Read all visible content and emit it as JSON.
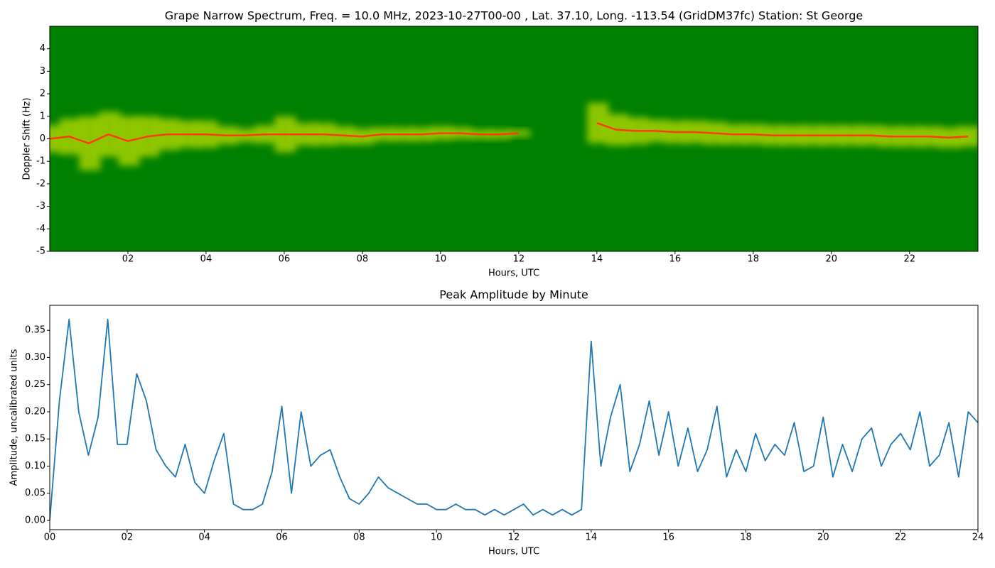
{
  "chart_data": [
    {
      "type": "spectrogram",
      "title": "Grape Narrow Spectrum, Freq. = 10.0 MHz, 2023-10-27T00-00 , Lat.  37.10, Long. -113.54 (GridDM37fc) Station: St George",
      "x_label": "Hours, UTC",
      "y_label": "Doppler Shift (Hz)",
      "background": "#008000",
      "colors": [
        "#ffff00",
        "#ff3c00"
      ],
      "x": [
        0,
        0.5,
        1,
        1.5,
        2,
        2.5,
        3,
        3.5,
        4,
        4.5,
        5,
        5.5,
        6,
        6.5,
        7,
        7.5,
        8,
        8.5,
        9,
        9.5,
        10,
        10.5,
        11,
        11.5,
        12,
        12.5,
        13,
        13.5,
        14,
        14.5,
        15,
        15.5,
        16,
        16.5,
        17,
        17.5,
        18,
        18.5,
        19,
        19.5,
        20,
        20.5,
        21,
        21.5,
        22,
        22.5,
        23,
        23.5
      ],
      "peak": [
        0,
        0.1,
        -0.2,
        0.2,
        -0.1,
        0.1,
        0.2,
        0.2,
        0.2,
        0.15,
        0.15,
        0.2,
        0.2,
        0.2,
        0.2,
        0.15,
        0.1,
        0.2,
        0.2,
        0.2,
        0.25,
        0.25,
        0.2,
        0.2,
        0.25,
        null,
        null,
        null,
        0.7,
        0.4,
        0.35,
        0.35,
        0.3,
        0.3,
        0.25,
        0.2,
        0.2,
        0.15,
        0.15,
        0.15,
        0.15,
        0.15,
        0.15,
        0.1,
        0.1,
        0.1,
        0.05,
        0.1
      ],
      "spread": [
        0.6,
        0.8,
        1.2,
        1.0,
        1.1,
        0.9,
        0.7,
        0.6,
        0.6,
        0.4,
        0.3,
        0.4,
        0.8,
        0.5,
        0.5,
        0.4,
        0.35,
        0.3,
        0.3,
        0.3,
        0.3,
        0.25,
        0.2,
        0.2,
        0.15,
        null,
        null,
        null,
        0.9,
        0.7,
        0.6,
        0.5,
        0.5,
        0.5,
        0.5,
        0.45,
        0.45,
        0.45,
        0.45,
        0.45,
        0.45,
        0.45,
        0.45,
        0.45,
        0.45,
        0.45,
        0.45,
        0.45
      ],
      "xlim": [
        0,
        23.75
      ],
      "ylim": [
        -5,
        5
      ],
      "xticks": [
        {
          "value": 2,
          "label": "02"
        },
        {
          "value": 4,
          "label": "04"
        },
        {
          "value": 6,
          "label": "06"
        },
        {
          "value": 8,
          "label": "08"
        },
        {
          "value": 10,
          "label": "10"
        },
        {
          "value": 12,
          "label": "12"
        },
        {
          "value": 14,
          "label": "14"
        },
        {
          "value": 16,
          "label": "16"
        },
        {
          "value": 18,
          "label": "18"
        },
        {
          "value": 20,
          "label": "20"
        },
        {
          "value": 22,
          "label": "22"
        }
      ],
      "yticks": [
        -5,
        -4,
        -3,
        -2,
        -1,
        0,
        1,
        2,
        3,
        4
      ]
    },
    {
      "type": "line",
      "title": "Peak Amplitude by Minute",
      "x_label": "Hours, UTC",
      "y_label": "Amplitude, uncalibrated units",
      "color": "#1f77b4",
      "x": [
        0,
        0.25,
        0.5,
        0.75,
        1,
        1.25,
        1.5,
        1.75,
        2,
        2.25,
        2.5,
        2.75,
        3,
        3.25,
        3.5,
        3.75,
        4,
        4.25,
        4.5,
        4.75,
        5,
        5.25,
        5.5,
        5.75,
        6,
        6.25,
        6.5,
        6.75,
        7,
        7.25,
        7.5,
        7.75,
        8,
        8.25,
        8.5,
        8.75,
        9,
        9.25,
        9.5,
        9.75,
        10,
        10.25,
        10.5,
        10.75,
        11,
        11.25,
        11.5,
        11.75,
        12,
        12.25,
        12.5,
        12.75,
        13,
        13.25,
        13.5,
        13.75,
        14,
        14.25,
        14.5,
        14.75,
        15,
        15.25,
        15.5,
        15.75,
        16,
        16.25,
        16.5,
        16.75,
        17,
        17.25,
        17.5,
        17.75,
        18,
        18.25,
        18.5,
        18.75,
        19,
        19.25,
        19.5,
        19.75,
        20,
        20.25,
        20.5,
        20.75,
        21,
        21.25,
        21.5,
        21.75,
        22,
        22.25,
        22.5,
        22.75,
        23,
        23.25,
        23.5,
        23.75,
        24
      ],
      "values": [
        0.0,
        0.22,
        0.37,
        0.2,
        0.12,
        0.19,
        0.37,
        0.14,
        0.14,
        0.27,
        0.22,
        0.13,
        0.1,
        0.08,
        0.14,
        0.07,
        0.05,
        0.11,
        0.16,
        0.03,
        0.02,
        0.02,
        0.03,
        0.09,
        0.21,
        0.05,
        0.2,
        0.1,
        0.12,
        0.13,
        0.08,
        0.04,
        0.03,
        0.05,
        0.08,
        0.06,
        0.05,
        0.04,
        0.03,
        0.03,
        0.02,
        0.02,
        0.03,
        0.02,
        0.02,
        0.01,
        0.02,
        0.01,
        0.02,
        0.03,
        0.01,
        0.02,
        0.01,
        0.02,
        0.01,
        0.02,
        0.33,
        0.1,
        0.19,
        0.25,
        0.09,
        0.14,
        0.22,
        0.12,
        0.2,
        0.1,
        0.17,
        0.09,
        0.13,
        0.21,
        0.08,
        0.13,
        0.09,
        0.16,
        0.11,
        0.14,
        0.12,
        0.18,
        0.09,
        0.1,
        0.19,
        0.08,
        0.14,
        0.09,
        0.15,
        0.17,
        0.1,
        0.14,
        0.16,
        0.13,
        0.2,
        0.1,
        0.12,
        0.18,
        0.08,
        0.2,
        0.18
      ],
      "xlim": [
        0,
        24
      ],
      "ylim": [
        -0.017,
        0.396
      ],
      "xticks": [
        {
          "value": 0,
          "label": "00"
        },
        {
          "value": 2,
          "label": "02"
        },
        {
          "value": 4,
          "label": "04"
        },
        {
          "value": 6,
          "label": "06"
        },
        {
          "value": 8,
          "label": "08"
        },
        {
          "value": 10,
          "label": "10"
        },
        {
          "value": 12,
          "label": "12"
        },
        {
          "value": 14,
          "label": "14"
        },
        {
          "value": 16,
          "label": "16"
        },
        {
          "value": 18,
          "label": "18"
        },
        {
          "value": 20,
          "label": "20"
        },
        {
          "value": 22,
          "label": "22"
        },
        {
          "value": 24,
          "label": "24"
        }
      ],
      "yticks": [
        {
          "value": 0,
          "label": "0.00"
        },
        {
          "value": 0.05,
          "label": "0.05"
        },
        {
          "value": 0.1,
          "label": "0.10"
        },
        {
          "value": 0.15,
          "label": "0.15"
        },
        {
          "value": 0.2,
          "label": "0.20"
        },
        {
          "value": 0.25,
          "label": "0.25"
        },
        {
          "value": 0.3,
          "label": "0.30"
        },
        {
          "value": 0.35,
          "label": "0.35"
        }
      ]
    }
  ]
}
